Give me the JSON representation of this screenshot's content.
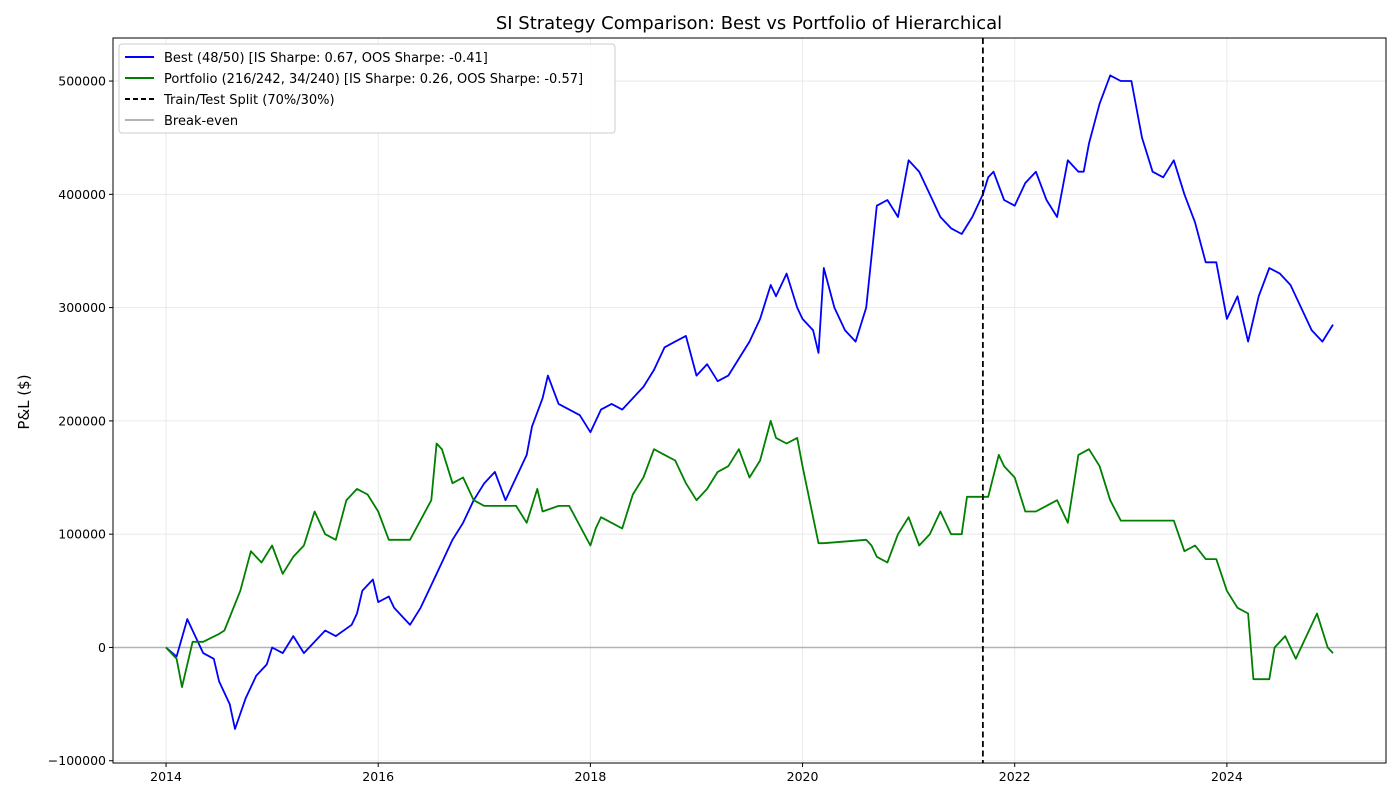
{
  "chart_data": {
    "type": "line",
    "title": "SI Strategy Comparison: Best vs Portfolio of Hierarchical",
    "xlabel": "",
    "ylabel": "P&L ($)",
    "xlim": [
      2013.5,
      2025.5
    ],
    "ylim": [
      -102000,
      538000
    ],
    "x_ticks": [
      2014,
      2016,
      2018,
      2020,
      2022,
      2024
    ],
    "x_tick_labels": [
      "2014",
      "2016",
      "2018",
      "2020",
      "2022",
      "2024"
    ],
    "y_ticks": [
      -100000,
      0,
      100000,
      200000,
      300000,
      400000,
      500000
    ],
    "y_tick_labels": [
      "−100000",
      "0",
      "100000",
      "200000",
      "300000",
      "400000",
      "500000"
    ],
    "grid": true,
    "legend_placement": "upper-left",
    "split_x": 2021.7,
    "breakeven_y": 0,
    "series": [
      {
        "name": "Best (48/50) [IS Sharpe: 0.67, OOS Sharpe: -0.41]",
        "color": "#0000ff",
        "x": [
          2014.0,
          2014.1,
          2014.2,
          2014.25,
          2014.35,
          2014.45,
          2014.5,
          2014.6,
          2014.65,
          2014.75,
          2014.85,
          2014.95,
          2015.0,
          2015.1,
          2015.2,
          2015.3,
          2015.4,
          2015.5,
          2015.6,
          2015.75,
          2015.8,
          2015.85,
          2015.95,
          2016.0,
          2016.1,
          2016.15,
          2016.25,
          2016.3,
          2016.4,
          2016.5,
          2016.6,
          2016.7,
          2016.8,
          2016.9,
          2017.0,
          2017.1,
          2017.2,
          2017.3,
          2017.4,
          2017.45,
          2017.55,
          2017.6,
          2017.7,
          2017.8,
          2017.9,
          2018.0,
          2018.1,
          2018.2,
          2018.3,
          2018.4,
          2018.5,
          2018.6,
          2018.7,
          2018.8,
          2018.9,
          2019.0,
          2019.1,
          2019.2,
          2019.3,
          2019.4,
          2019.5,
          2019.6,
          2019.7,
          2019.75,
          2019.85,
          2019.95,
          2020.0,
          2020.1,
          2020.15,
          2020.2,
          2020.3,
          2020.4,
          2020.5,
          2020.6,
          2020.65,
          2020.7,
          2020.8,
          2020.9,
          2021.0,
          2021.1,
          2021.2,
          2021.3,
          2021.4,
          2021.5,
          2021.6,
          2021.7,
          2021.75,
          2021.8,
          2021.9,
          2022.0,
          2022.1,
          2022.2,
          2022.3,
          2022.4,
          2022.5,
          2022.6,
          2022.65,
          2022.7,
          2022.8,
          2022.9,
          2023.0,
          2023.1,
          2023.2,
          2023.3,
          2023.4,
          2023.5,
          2023.6,
          2023.7,
          2023.8,
          2023.9,
          2024.0,
          2024.1,
          2024.2,
          2024.3,
          2024.4,
          2024.5,
          2024.6,
          2024.7,
          2024.8,
          2024.9,
          2025.0
        ],
        "y": [
          0,
          -8000,
          25000,
          15000,
          -5000,
          -10000,
          -30000,
          -50000,
          -72000,
          -45000,
          -25000,
          -15000,
          0,
          -5000,
          10000,
          -5000,
          5000,
          15000,
          10000,
          20000,
          30000,
          50000,
          60000,
          40000,
          45000,
          35000,
          25000,
          20000,
          35000,
          55000,
          75000,
          95000,
          110000,
          130000,
          145000,
          155000,
          130000,
          150000,
          170000,
          195000,
          220000,
          240000,
          215000,
          210000,
          205000,
          190000,
          210000,
          215000,
          210000,
          220000,
          230000,
          245000,
          265000,
          270000,
          275000,
          240000,
          250000,
          235000,
          240000,
          255000,
          270000,
          290000,
          320000,
          310000,
          330000,
          300000,
          290000,
          280000,
          260000,
          335000,
          300000,
          280000,
          270000,
          300000,
          345000,
          390000,
          395000,
          380000,
          430000,
          420000,
          400000,
          380000,
          370000,
          365000,
          380000,
          400000,
          415000,
          420000,
          395000,
          390000,
          410000,
          420000,
          395000,
          380000,
          430000,
          420000,
          420000,
          445000,
          480000,
          505000,
          500000,
          500000,
          450000,
          420000,
          415000,
          430000,
          400000,
          375000,
          340000,
          340000,
          290000,
          310000,
          270000,
          310000,
          335000,
          330000,
          320000,
          300000,
          280000,
          270000,
          285000
        ]
      },
      {
        "name": "Portfolio (216/242, 34/240) [IS Sharpe: 0.26, OOS Sharpe: -0.57]",
        "color": "#008000",
        "x": [
          2014.0,
          2014.1,
          2014.15,
          2014.25,
          2014.35,
          2014.5,
          2014.55,
          2014.7,
          2014.8,
          2014.9,
          2015.0,
          2015.1,
          2015.2,
          2015.3,
          2015.4,
          2015.5,
          2015.6,
          2015.7,
          2015.8,
          2015.9,
          2016.0,
          2016.1,
          2016.2,
          2016.3,
          2016.5,
          2016.55,
          2016.6,
          2016.7,
          2016.8,
          2016.9,
          2017.0,
          2017.3,
          2017.4,
          2017.5,
          2017.55,
          2017.7,
          2017.8,
          2018.0,
          2018.05,
          2018.1,
          2018.2,
          2018.3,
          2018.4,
          2018.5,
          2018.6,
          2018.7,
          2018.8,
          2018.9,
          2019.0,
          2019.1,
          2019.2,
          2019.3,
          2019.4,
          2019.5,
          2019.6,
          2019.7,
          2019.75,
          2019.85,
          2019.95,
          2020.0,
          2020.15,
          2020.2,
          2020.6,
          2020.65,
          2020.7,
          2020.8,
          2020.9,
          2021.0,
          2021.1,
          2021.2,
          2021.3,
          2021.4,
          2021.5,
          2021.55,
          2021.75,
          2021.85,
          2021.9,
          2022.0,
          2022.1,
          2022.2,
          2022.4,
          2022.5,
          2022.6,
          2022.7,
          2022.8,
          2022.9,
          2023.0,
          2023.5,
          2023.6,
          2023.7,
          2023.8,
          2023.9,
          2024.0,
          2024.1,
          2024.2,
          2024.25,
          2024.4,
          2024.45,
          2024.55,
          2024.65,
          2024.75,
          2024.85,
          2024.95,
          2025.0
        ],
        "y": [
          0,
          -10000,
          -35000,
          5000,
          5000,
          12000,
          15000,
          50000,
          85000,
          75000,
          90000,
          65000,
          80000,
          90000,
          120000,
          100000,
          95000,
          130000,
          140000,
          135000,
          120000,
          95000,
          95000,
          95000,
          130000,
          180000,
          175000,
          145000,
          150000,
          130000,
          125000,
          125000,
          110000,
          140000,
          120000,
          125000,
          125000,
          90000,
          105000,
          115000,
          110000,
          105000,
          135000,
          150000,
          175000,
          170000,
          165000,
          145000,
          130000,
          140000,
          155000,
          160000,
          175000,
          150000,
          165000,
          200000,
          185000,
          180000,
          185000,
          160000,
          92000,
          92000,
          95000,
          90000,
          80000,
          75000,
          100000,
          115000,
          90000,
          100000,
          120000,
          100000,
          100000,
          133000,
          133000,
          170000,
          160000,
          150000,
          120000,
          120000,
          130000,
          110000,
          170000,
          175000,
          160000,
          130000,
          112000,
          112000,
          85000,
          90000,
          78000,
          78000,
          50000,
          35000,
          30000,
          -28000,
          -28000,
          0,
          10000,
          -10000,
          10000,
          30000,
          0,
          -5000
        ]
      },
      {
        "name": "Train/Test Split (70%/30%)",
        "color": "#000000"
      },
      {
        "name": "Break-even",
        "color": "#b3b3b3"
      }
    ]
  }
}
